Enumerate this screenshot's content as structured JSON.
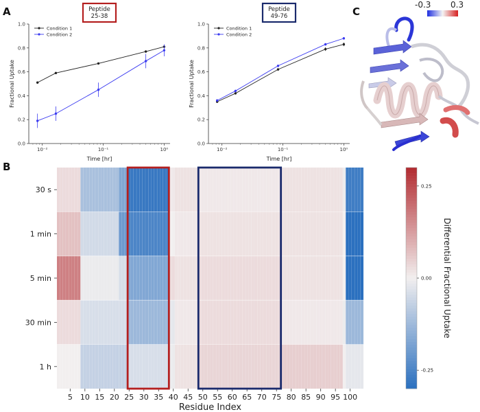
{
  "panel_labels": {
    "a": "A",
    "b": "B",
    "c": "C"
  },
  "chart_data": [
    {
      "type": "line",
      "id": "uptake-25-38",
      "title": "Peptide\n25-38",
      "title_color": "#b41f1f",
      "xlabel": "Time [hr]",
      "ylabel": "Fractional Uptake",
      "xscale": "log",
      "xlim": [
        0.006,
        1.25
      ],
      "ylim": [
        0.0,
        1.0
      ],
      "yticks": [
        0.0,
        0.2,
        0.4,
        0.6,
        0.8,
        1.0
      ],
      "ytick_labels": [
        "0.0",
        "0.2",
        "0.4",
        "0.6",
        "0.8",
        "1.0"
      ],
      "xticks": [
        0.01,
        0.1,
        1
      ],
      "xtick_labels": [
        "10⁻²",
        "10⁻¹",
        "10⁰"
      ],
      "x": [
        0.00833,
        0.01667,
        0.0833,
        0.5,
        1.0
      ],
      "series": [
        {
          "name": "Condition 1",
          "color": "#222222",
          "values": [
            0.51,
            0.59,
            0.67,
            0.77,
            0.81
          ],
          "err": [
            0.005,
            0.005,
            0.005,
            0.01,
            0.01
          ]
        },
        {
          "name": "Condition 2",
          "color": "#3a3af0",
          "values": [
            0.19,
            0.25,
            0.45,
            0.69,
            0.78
          ],
          "err": [
            0.06,
            0.06,
            0.06,
            0.06,
            0.05
          ]
        }
      ]
    },
    {
      "type": "line",
      "id": "uptake-49-76",
      "title": "Peptide\n49-76",
      "title_color": "#1a2a6c",
      "xlabel": "Time [hr]",
      "ylabel": "Fractional Uptake",
      "xscale": "log",
      "xlim": [
        0.006,
        1.25
      ],
      "ylim": [
        0.0,
        1.0
      ],
      "yticks": [
        0.0,
        0.2,
        0.4,
        0.6,
        0.8,
        1.0
      ],
      "ytick_labels": [
        "0.0",
        "0.2",
        "0.4",
        "0.6",
        "0.8",
        "1.0"
      ],
      "xticks": [
        0.01,
        0.1,
        1
      ],
      "xtick_labels": [
        "10⁻²",
        "10⁻¹",
        "10⁰"
      ],
      "x": [
        0.00833,
        0.01667,
        0.0833,
        0.5,
        1.0
      ],
      "series": [
        {
          "name": "Condition 1",
          "color": "#222222",
          "values": [
            0.35,
            0.42,
            0.62,
            0.79,
            0.83
          ],
          "err": [
            0.01,
            0.01,
            0.01,
            0.015,
            0.015
          ]
        },
        {
          "name": "Condition 2",
          "color": "#3a3af0",
          "values": [
            0.36,
            0.44,
            0.65,
            0.83,
            0.88
          ],
          "err": [
            0.01,
            0.01,
            0.01,
            0.01,
            0.01
          ]
        }
      ]
    },
    {
      "type": "heatmap",
      "id": "differential-heatmap",
      "xlabel": "Residue Index",
      "row_labels": [
        "30 s",
        "1 min",
        "5 min",
        "30 min",
        "1 h"
      ],
      "n_residues": 104,
      "xtick_values": [
        5,
        10,
        15,
        20,
        25,
        30,
        35,
        40,
        45,
        50,
        55,
        60,
        65,
        70,
        75,
        80,
        85,
        90,
        95,
        100
      ],
      "segments": [
        {
          "start": 1,
          "end": 8,
          "values": [
            0.03,
            0.07,
            0.17,
            0.03,
            0.0
          ]
        },
        {
          "start": 9,
          "end": 21,
          "values": [
            -0.11,
            -0.05,
            -0.01,
            -0.04,
            -0.07
          ]
        },
        {
          "start": 22,
          "end": 24,
          "values": [
            -0.17,
            -0.2,
            -0.04,
            -0.04,
            -0.07
          ]
        },
        {
          "start": 25,
          "end": 38,
          "values": [
            -0.28,
            -0.25,
            -0.17,
            -0.13,
            -0.04
          ]
        },
        {
          "start": 39,
          "end": 40,
          "values": [
            0.01,
            0.0,
            0.03,
            -0.02,
            -0.01
          ]
        },
        {
          "start": 41,
          "end": 48,
          "values": [
            0.02,
            0.01,
            0.02,
            0.01,
            0.02
          ]
        },
        {
          "start": 49,
          "end": 76,
          "values": [
            0.01,
            0.02,
            0.03,
            0.03,
            0.04
          ]
        },
        {
          "start": 77,
          "end": 97,
          "values": [
            0.02,
            0.02,
            0.02,
            0.01,
            0.05
          ]
        },
        {
          "start": 98,
          "end": 98,
          "values": [
            -0.01,
            0.0,
            0.0,
            -0.01,
            0.0
          ]
        },
        {
          "start": 99,
          "end": 104,
          "values": [
            -0.27,
            -0.3,
            -0.33,
            -0.13,
            -0.02
          ]
        }
      ],
      "highlight_boxes": [
        {
          "start": 25,
          "end": 38,
          "color": "#b41f1f"
        },
        {
          "start": 49,
          "end": 76,
          "color": "#1a2a6c"
        }
      ],
      "colorbar": {
        "label": "Differential Fractional Uptake",
        "vmin": -0.3,
        "vmax": 0.3,
        "ticks": [
          -0.25,
          0.0,
          0.25
        ],
        "tick_labels": [
          "-0.25",
          "0.00",
          "0.25"
        ]
      }
    }
  ],
  "structure_legend": {
    "min_label": "-0.3",
    "max_label": "0.3"
  }
}
